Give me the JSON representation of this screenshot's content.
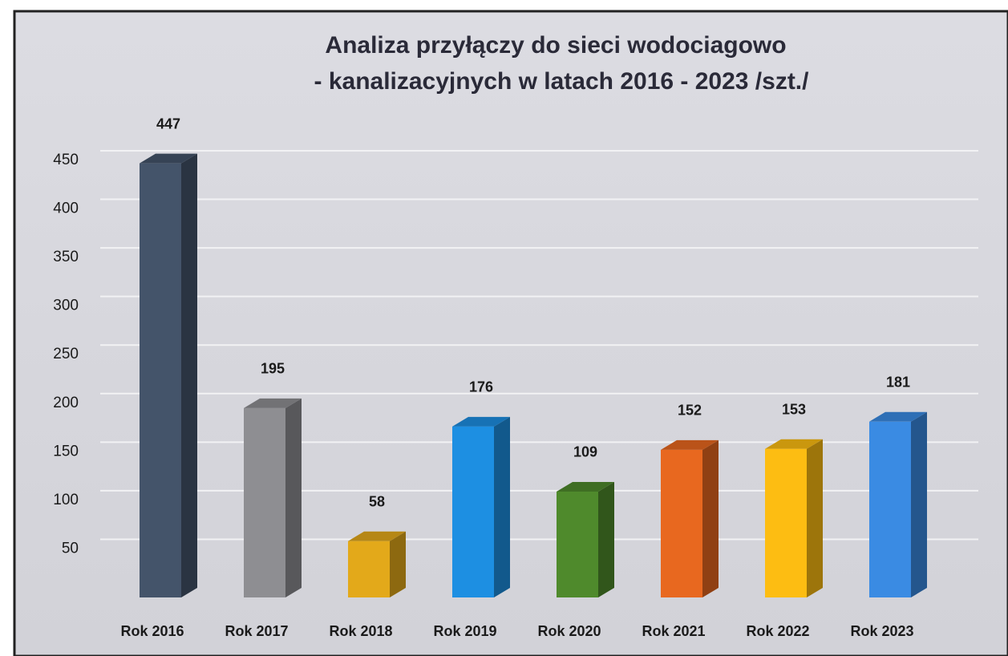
{
  "chart_data": {
    "type": "bar3d",
    "title": [
      "Analiza przyłączy do sieci wodociagowo",
      "- kanalizacyjnych w latach 2016 - 2023 /szt./"
    ],
    "categories": [
      "Rok 2016",
      "Rok 2017",
      "Rok 2018",
      "Rok 2019",
      "Rok 2020",
      "Rok 2021",
      "Rok 2022",
      "Rok 2023"
    ],
    "values": [
      447,
      195,
      58,
      176,
      109,
      152,
      153,
      181
    ],
    "colors": [
      "#44546a",
      "#8e8e92",
      "#e3a91a",
      "#1d8fe2",
      "#4f8a2c",
      "#e8681f",
      "#fdbd12",
      "#3a8be3"
    ],
    "ylim": [
      0,
      450
    ],
    "yticks": [
      50,
      100,
      150,
      200,
      250,
      300,
      350,
      400,
      450
    ],
    "grid": true
  }
}
